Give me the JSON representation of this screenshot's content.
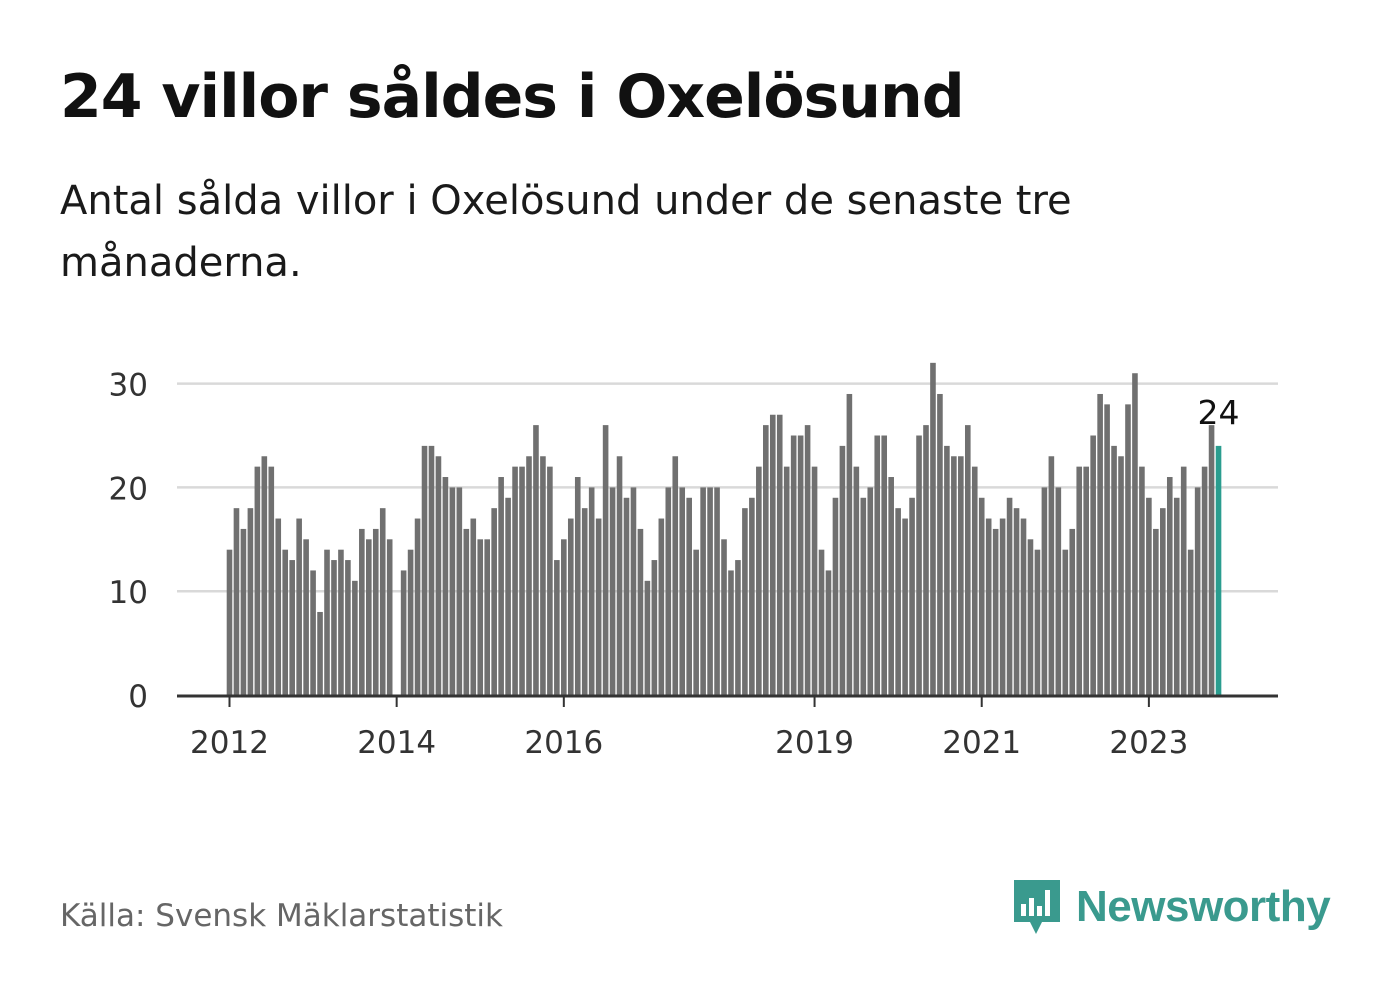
{
  "title": "24 villor såldes i Oxelösund",
  "subtitle": "Antal sålda villor i Oxelösund under de senaste tre månaderna.",
  "source": "Källa: Svensk Mäklarstatistik",
  "brand": "Newsworthy",
  "colors": {
    "bar": "#707070",
    "highlight": "#2a9d8f",
    "grid": "#d9d9d9",
    "axis": "#333333",
    "brand": "#3a9a8e"
  },
  "chart_data": {
    "type": "bar",
    "ylim": [
      0,
      33
    ],
    "yticks": [
      0,
      10,
      20,
      30
    ],
    "xticks": [
      {
        "label": "2012",
        "index": 0
      },
      {
        "label": "2014",
        "index": 24
      },
      {
        "label": "2016",
        "index": 48
      },
      {
        "label": "2019",
        "index": 84
      },
      {
        "label": "2021",
        "index": 108
      },
      {
        "label": "2023",
        "index": 132
      }
    ],
    "annotation": {
      "label": "24",
      "index": 142
    },
    "grid": true,
    "values": [
      14,
      18,
      16,
      18,
      22,
      23,
      22,
      17,
      14,
      13,
      17,
      15,
      12,
      8,
      14,
      13,
      14,
      13,
      11,
      16,
      15,
      16,
      18,
      15,
      0,
      12,
      14,
      17,
      24,
      24,
      23,
      21,
      20,
      20,
      16,
      17,
      15,
      15,
      18,
      21,
      19,
      22,
      22,
      23,
      26,
      23,
      22,
      13,
      15,
      17,
      21,
      18,
      20,
      17,
      26,
      20,
      23,
      19,
      20,
      16,
      11,
      13,
      17,
      20,
      23,
      20,
      19,
      14,
      20,
      20,
      20,
      15,
      12,
      13,
      18,
      19,
      22,
      26,
      27,
      27,
      22,
      25,
      25,
      26,
      22,
      14,
      12,
      19,
      24,
      29,
      22,
      19,
      20,
      25,
      25,
      21,
      18,
      17,
      19,
      25,
      26,
      32,
      29,
      24,
      23,
      23,
      26,
      22,
      19,
      17,
      16,
      17,
      19,
      18,
      17,
      15,
      14,
      20,
      23,
      20,
      14,
      16,
      22,
      22,
      25,
      29,
      28,
      24,
      23,
      28,
      31,
      22,
      19,
      16,
      18,
      21,
      19,
      22,
      14,
      20,
      22,
      26,
      24
    ]
  }
}
